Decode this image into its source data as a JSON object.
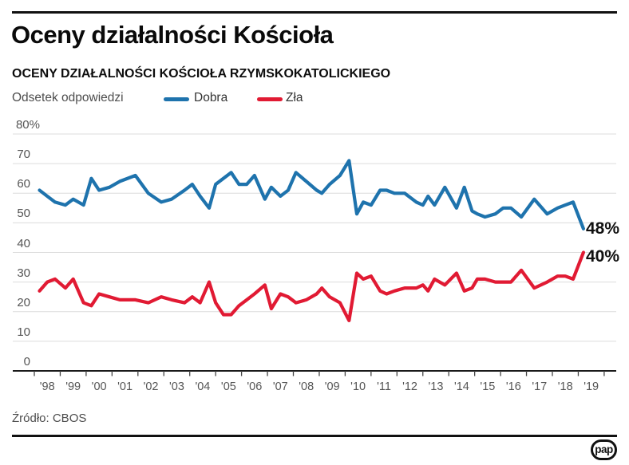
{
  "header": {
    "title": "Oceny działalności Kościoła",
    "subtitle": "OCENY DZIAŁALNOŚCI KOŚCIOŁA RZYMSKOKATOLICKIEGO"
  },
  "legend": {
    "axis_label": "Odsetek odpowiedzi",
    "items": [
      {
        "label": "Dobra",
        "color": "#1e73ad"
      },
      {
        "label": "Zła",
        "color": "#e11a33"
      }
    ]
  },
  "footer": {
    "source": "Źródło: CBOS",
    "logo_text": "pap"
  },
  "chart_data": {
    "type": "line",
    "title": "Oceny działalności Kościoła rzymskokatolickiego",
    "ylabel": "Odsetek odpowiedzi",
    "ylim": [
      0,
      80
    ],
    "grid": true,
    "legend_position": "top",
    "yticks": [
      80,
      70,
      60,
      50,
      40,
      30,
      20,
      10,
      0
    ],
    "ytick_labels": [
      "80%",
      "70",
      "60",
      "50",
      "40",
      "30",
      "20",
      "10",
      "0"
    ],
    "xtick_labels": [
      "'98",
      "'99",
      "'00",
      "'01",
      "'02",
      "'03",
      "'04",
      "'05",
      "'06",
      "'07",
      "'08",
      "'09",
      "'10",
      "'11",
      "'12",
      "'13",
      "'14",
      "'15",
      "'16",
      "'17",
      "'18",
      "'19"
    ],
    "x_years": [
      1998.2,
      1998.5,
      1998.8,
      1999.2,
      1999.5,
      1999.9,
      2000.2,
      2000.5,
      2000.9,
      2001.3,
      2001.9,
      2002.4,
      2002.9,
      2003.3,
      2003.8,
      2004.1,
      2004.4,
      2004.75,
      2005.0,
      2005.3,
      2005.6,
      2005.9,
      2006.2,
      2006.5,
      2006.9,
      2007.15,
      2007.5,
      2007.8,
      2008.1,
      2008.5,
      2008.9,
      2009.1,
      2009.4,
      2009.8,
      2010.15,
      2010.45,
      2010.7,
      2011.0,
      2011.35,
      2011.6,
      2011.9,
      2012.3,
      2012.75,
      2013.0,
      2013.2,
      2013.45,
      2013.85,
      2014.3,
      2014.6,
      2014.9,
      2015.1,
      2015.4,
      2015.8,
      2016.1,
      2016.4,
      2016.8,
      2017.3,
      2017.8,
      2018.2,
      2018.5,
      2018.8,
      2019.2
    ],
    "series": [
      {
        "name": "Dobra",
        "color": "#1e73ad",
        "values": [
          61,
          59,
          57,
          56,
          58,
          56,
          65,
          61,
          62,
          64,
          66,
          60,
          57,
          58,
          61,
          63,
          59,
          55,
          63,
          65,
          67,
          63,
          63,
          66,
          58,
          62,
          59,
          61,
          67,
          64,
          61,
          60,
          63,
          66,
          71,
          53,
          57,
          56,
          61,
          61,
          60,
          60,
          57,
          56,
          59,
          56,
          62,
          55,
          62,
          54,
          53,
          52,
          53,
          55,
          55,
          52,
          58,
          53,
          55,
          56,
          57,
          48
        ]
      },
      {
        "name": "Zła",
        "color": "#e11a33",
        "values": [
          27,
          30,
          31,
          28,
          31,
          23,
          22,
          26,
          25,
          24,
          24,
          23,
          25,
          24,
          23,
          25,
          23,
          30,
          23,
          19,
          19,
          22,
          24,
          26,
          29,
          21,
          26,
          25,
          23,
          24,
          26,
          28,
          25,
          23,
          17,
          33,
          31,
          32,
          27,
          26,
          27,
          28,
          28,
          29,
          27,
          31,
          29,
          33,
          27,
          28,
          31,
          31,
          30,
          30,
          30,
          34,
          28,
          30,
          32,
          32,
          31,
          40
        ]
      }
    ],
    "end_labels": [
      "48%",
      "40%"
    ]
  }
}
